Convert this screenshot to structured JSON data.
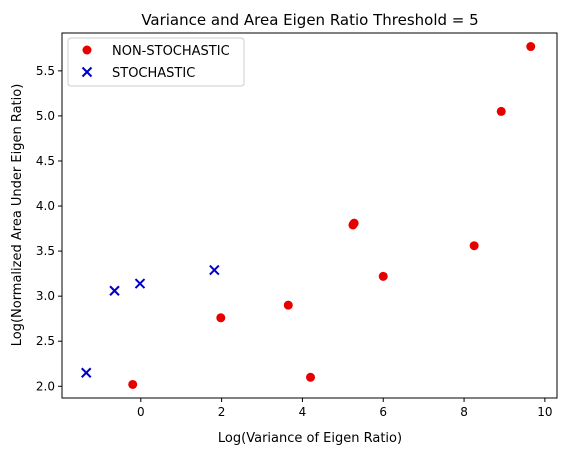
{
  "chart_data": {
    "type": "scatter",
    "title": "Variance and  Area Eigen Ratio Threshold = 5",
    "xlabel": "Log(Variance of Eigen Ratio)",
    "ylabel": "Log(Normalized Area Under Eigen Ratio)",
    "xlim": [
      -1.95,
      10.3
    ],
    "ylim": [
      1.87,
      5.92
    ],
    "xticks": [
      0,
      2,
      4,
      6,
      8,
      10
    ],
    "xtick_labels": [
      "0",
      "2",
      "4",
      "6",
      "8",
      "10"
    ],
    "yticks": [
      2.0,
      2.5,
      3.0,
      3.5,
      4.0,
      4.5,
      5.0,
      5.5
    ],
    "ytick_labels": [
      "2.0",
      "2.5",
      "3.0",
      "3.5",
      "4.0",
      "4.5",
      "5.0",
      "5.5"
    ],
    "grid": false,
    "legend_position": "top-left",
    "series": [
      {
        "name": "NON-STOCHASTIC",
        "marker": "circle",
        "color": "#e60000",
        "points": [
          {
            "x": -0.2,
            "y": 2.02
          },
          {
            "x": 1.98,
            "y": 2.76
          },
          {
            "x": 3.65,
            "y": 2.9
          },
          {
            "x": 4.2,
            "y": 2.1
          },
          {
            "x": 5.25,
            "y": 3.79
          },
          {
            "x": 5.28,
            "y": 3.81
          },
          {
            "x": 6.0,
            "y": 3.22
          },
          {
            "x": 8.25,
            "y": 3.56
          },
          {
            "x": 8.92,
            "y": 5.05
          },
          {
            "x": 9.65,
            "y": 5.77
          }
        ]
      },
      {
        "name": "STOCHASTIC",
        "marker": "x",
        "color": "#0000cc",
        "points": [
          {
            "x": -1.35,
            "y": 2.15
          },
          {
            "x": -0.65,
            "y": 3.06
          },
          {
            "x": -0.02,
            "y": 3.14
          },
          {
            "x": 1.82,
            "y": 3.29
          }
        ]
      }
    ]
  }
}
